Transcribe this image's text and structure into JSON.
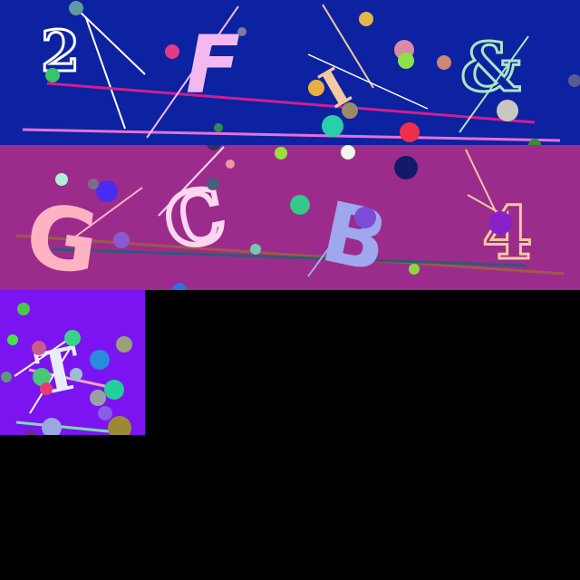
{
  "image": {
    "background": "#000000"
  },
  "tiles": [
    {
      "id": "tile-1",
      "background": "#0c22a0",
      "glyphs": [
        {
          "text": "2",
          "color": "#ffffff"
        },
        {
          "text": "F",
          "color": "#f3b8f0"
        },
        {
          "text": "I",
          "color": "#f1c9a3"
        },
        {
          "text": "&",
          "color": "#a9e6c4"
        }
      ]
    },
    {
      "id": "tile-2",
      "background": "#9c2c8c",
      "glyphs": [
        {
          "text": "G",
          "color": "#ffb3c2"
        },
        {
          "text": "C",
          "color": "#ffd6f0"
        },
        {
          "text": "B",
          "color": "#9fa7ef"
        },
        {
          "text": "4",
          "color": "#f0c9a0"
        }
      ]
    },
    {
      "id": "tile-3",
      "background": "#7b14f0",
      "glyphs": [
        {
          "text": "T",
          "color": "#e8eef8"
        }
      ]
    }
  ]
}
